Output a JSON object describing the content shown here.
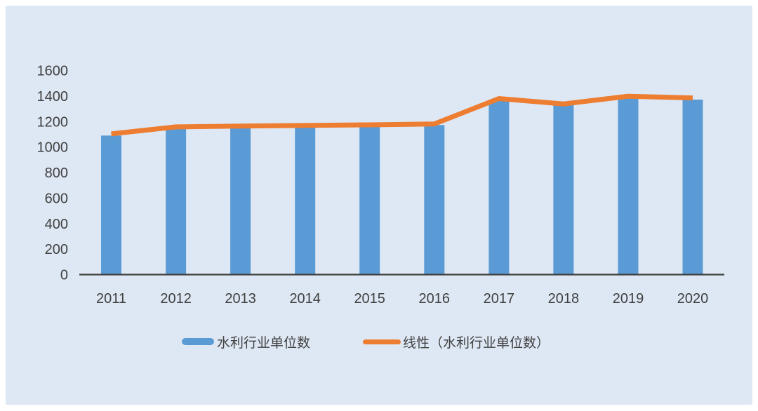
{
  "panel": {
    "background": "#dee8f4"
  },
  "chart_data": {
    "type": "bar",
    "title": "",
    "xlabel": "",
    "ylabel": "",
    "categories": [
      "2011",
      "2012",
      "2013",
      "2014",
      "2015",
      "2016",
      "2017",
      "2018",
      "2019",
      "2020"
    ],
    "series": [
      {
        "name": "水利行业单位数",
        "type": "bar",
        "color": "#5b9bd5",
        "values": [
          1090,
          1145,
          1155,
          1160,
          1165,
          1172,
          1370,
          1330,
          1390,
          1372
        ]
      },
      {
        "name": "线性（水利行业单位数）",
        "type": "line",
        "color": "#ed7d31",
        "values": [
          1103,
          1158,
          1164,
          1169,
          1174,
          1181,
          1380,
          1338,
          1398,
          1385
        ]
      }
    ],
    "ylim": [
      0,
      1600
    ],
    "ytick_step": 200,
    "yticks": [
      "0",
      "200",
      "400",
      "600",
      "800",
      "1000",
      "1200",
      "1400",
      "1600"
    ],
    "grid": false,
    "legend_position": "bottom",
    "axis_color": "#3f3f3f",
    "tick_text_color": "#404040"
  }
}
